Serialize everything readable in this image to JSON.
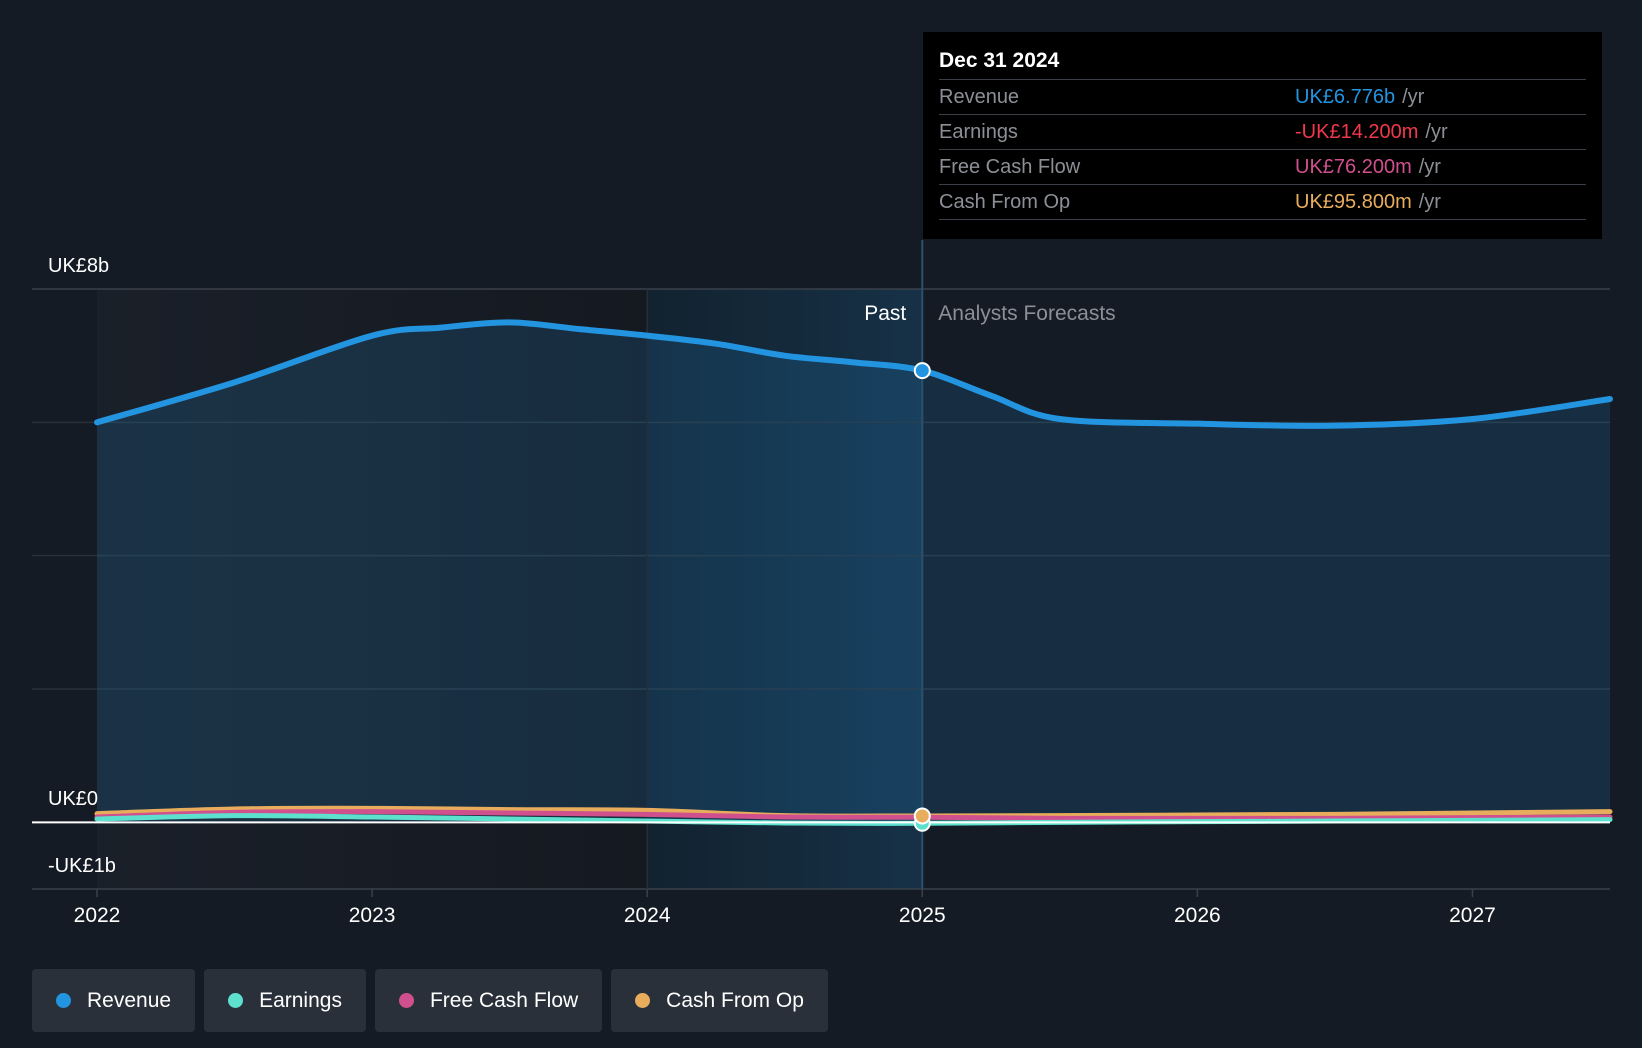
{
  "chart_data": {
    "type": "area",
    "y_axis": {
      "top_label": "UK£8b",
      "zero_label": "UK£0",
      "bottom_label": "-UK£1b",
      "ylim": [
        -1,
        8
      ],
      "unit": "UK£ billions"
    },
    "x_ticks": [
      "2022",
      "2023",
      "2024",
      "2025",
      "2026",
      "2027"
    ],
    "region_labels": {
      "past": "Past",
      "forecast": "Analysts Forecasts"
    },
    "divider_x": 2025.0,
    "highlight_start_x": 2024.0,
    "series": [
      {
        "name": "Revenue",
        "color": "#2394e0",
        "points": [
          [
            2022.0,
            6.0
          ],
          [
            2022.5,
            6.6
          ],
          [
            2023.0,
            7.3
          ],
          [
            2023.25,
            7.42
          ],
          [
            2023.5,
            7.5
          ],
          [
            2023.75,
            7.4
          ],
          [
            2024.0,
            7.3
          ],
          [
            2024.25,
            7.18
          ],
          [
            2024.5,
            7.0
          ],
          [
            2024.75,
            6.9
          ],
          [
            2025.0,
            6.776
          ],
          [
            2025.25,
            6.4
          ],
          [
            2025.5,
            6.05
          ],
          [
            2026.0,
            5.98
          ],
          [
            2026.5,
            5.95
          ],
          [
            2027.0,
            6.05
          ],
          [
            2027.5,
            6.35
          ]
        ]
      },
      {
        "name": "Earnings",
        "color": "#5ee0cf",
        "points": [
          [
            2022.0,
            0.05
          ],
          [
            2022.5,
            0.1
          ],
          [
            2023.0,
            0.08
          ],
          [
            2023.5,
            0.05
          ],
          [
            2024.0,
            0.02
          ],
          [
            2024.5,
            -0.01
          ],
          [
            2025.0,
            -0.0142
          ],
          [
            2025.5,
            0.0
          ],
          [
            2026.0,
            0.01
          ],
          [
            2026.5,
            0.02
          ],
          [
            2027.0,
            0.03
          ],
          [
            2027.5,
            0.04
          ]
        ]
      },
      {
        "name": "Free Cash Flow",
        "color": "#d0508e",
        "points": [
          [
            2022.0,
            0.08
          ],
          [
            2022.5,
            0.15
          ],
          [
            2023.0,
            0.16
          ],
          [
            2023.5,
            0.14
          ],
          [
            2024.0,
            0.12
          ],
          [
            2024.5,
            0.08
          ],
          [
            2025.0,
            0.0762
          ],
          [
            2025.5,
            0.06
          ],
          [
            2026.0,
            0.06
          ],
          [
            2026.5,
            0.06
          ],
          [
            2027.0,
            0.07
          ],
          [
            2027.5,
            0.08
          ]
        ]
      },
      {
        "name": "Cash From Op",
        "color": "#e8ad5c",
        "points": [
          [
            2022.0,
            0.13
          ],
          [
            2022.5,
            0.2
          ],
          [
            2023.0,
            0.21
          ],
          [
            2023.5,
            0.19
          ],
          [
            2024.0,
            0.18
          ],
          [
            2024.5,
            0.1
          ],
          [
            2025.0,
            0.0958
          ],
          [
            2025.5,
            0.1
          ],
          [
            2026.0,
            0.11
          ],
          [
            2026.5,
            0.12
          ],
          [
            2027.0,
            0.14
          ],
          [
            2027.5,
            0.16
          ]
        ]
      }
    ]
  },
  "tooltip": {
    "date": "Dec 31 2024",
    "unit": "/yr",
    "rows": [
      {
        "label": "Revenue",
        "value": "UK£6.776b",
        "color": "#2394e0"
      },
      {
        "label": "Earnings",
        "value": "-UK£14.200m",
        "color": "#f0384a"
      },
      {
        "label": "Free Cash Flow",
        "value": "UK£76.200m",
        "color": "#d0508e"
      },
      {
        "label": "Cash From Op",
        "value": "UK£95.800m",
        "color": "#e8ad5c"
      }
    ]
  },
  "legend": [
    {
      "label": "Revenue",
      "color": "#2394e0"
    },
    {
      "label": "Earnings",
      "color": "#5ee0cf"
    },
    {
      "label": "Free Cash Flow",
      "color": "#d0508e"
    },
    {
      "label": "Cash From Op",
      "color": "#e8ad5c"
    }
  ]
}
